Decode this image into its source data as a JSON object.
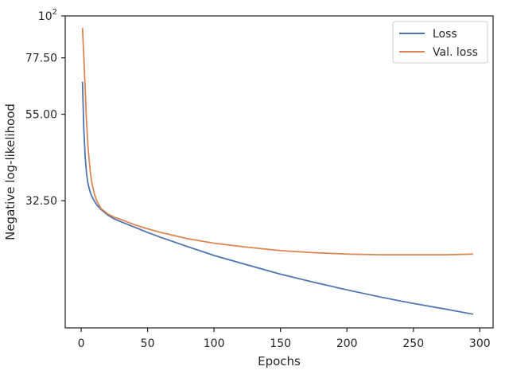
{
  "chart_data": {
    "type": "line",
    "xlabel": "Epochs",
    "ylabel": "Negative log-likelihood",
    "xlim": [
      -12,
      310
    ],
    "ylim": [
      15,
      100
    ],
    "y_scale": "log",
    "x_ticks": [
      {
        "value": 0,
        "label": "0"
      },
      {
        "value": 50,
        "label": "50"
      },
      {
        "value": 100,
        "label": "100"
      },
      {
        "value": 150,
        "label": "150"
      },
      {
        "value": 200,
        "label": "200"
      },
      {
        "value": 250,
        "label": "250"
      },
      {
        "value": 300,
        "label": "300"
      }
    ],
    "y_ticks": [
      {
        "value": 32.5,
        "label": "32.50"
      },
      {
        "value": 55,
        "label": "55.00"
      },
      {
        "value": 77.5,
        "label": "77.50"
      },
      {
        "value": 100,
        "label": "10",
        "sup": "2"
      }
    ],
    "grid": false,
    "legend_position": "top-right",
    "series": [
      {
        "name": "Loss",
        "color": "#4c72b0",
        "x": [
          1,
          2,
          3,
          4,
          5,
          6,
          7,
          8,
          10,
          12,
          15,
          20,
          25,
          30,
          40,
          50,
          60,
          80,
          100,
          125,
          150,
          175,
          200,
          225,
          250,
          275,
          295
        ],
        "y": [
          67,
          50,
          42.5,
          38.5,
          36.3,
          35,
          34.1,
          33.4,
          32.4,
          31.6,
          30.8,
          29.8,
          29.1,
          28.6,
          27.7,
          26.8,
          26,
          24.6,
          23.3,
          22,
          20.8,
          19.8,
          18.9,
          18.1,
          17.4,
          16.8,
          16.3
        ]
      },
      {
        "name": "Val. loss",
        "color": "#dd8452",
        "x": [
          1,
          2,
          3,
          4,
          5,
          6,
          7,
          8,
          10,
          12,
          15,
          20,
          25,
          30,
          40,
          50,
          60,
          80,
          100,
          125,
          150,
          175,
          200,
          225,
          250,
          275,
          295
        ],
        "y": [
          93,
          78,
          64,
          53,
          46,
          41.5,
          38.5,
          36.3,
          33.8,
          32.3,
          31,
          30,
          29.4,
          29,
          28.1,
          27.4,
          26.8,
          25.8,
          25.1,
          24.5,
          24,
          23.7,
          23.5,
          23.4,
          23.4,
          23.4,
          23.5
        ]
      }
    ]
  }
}
